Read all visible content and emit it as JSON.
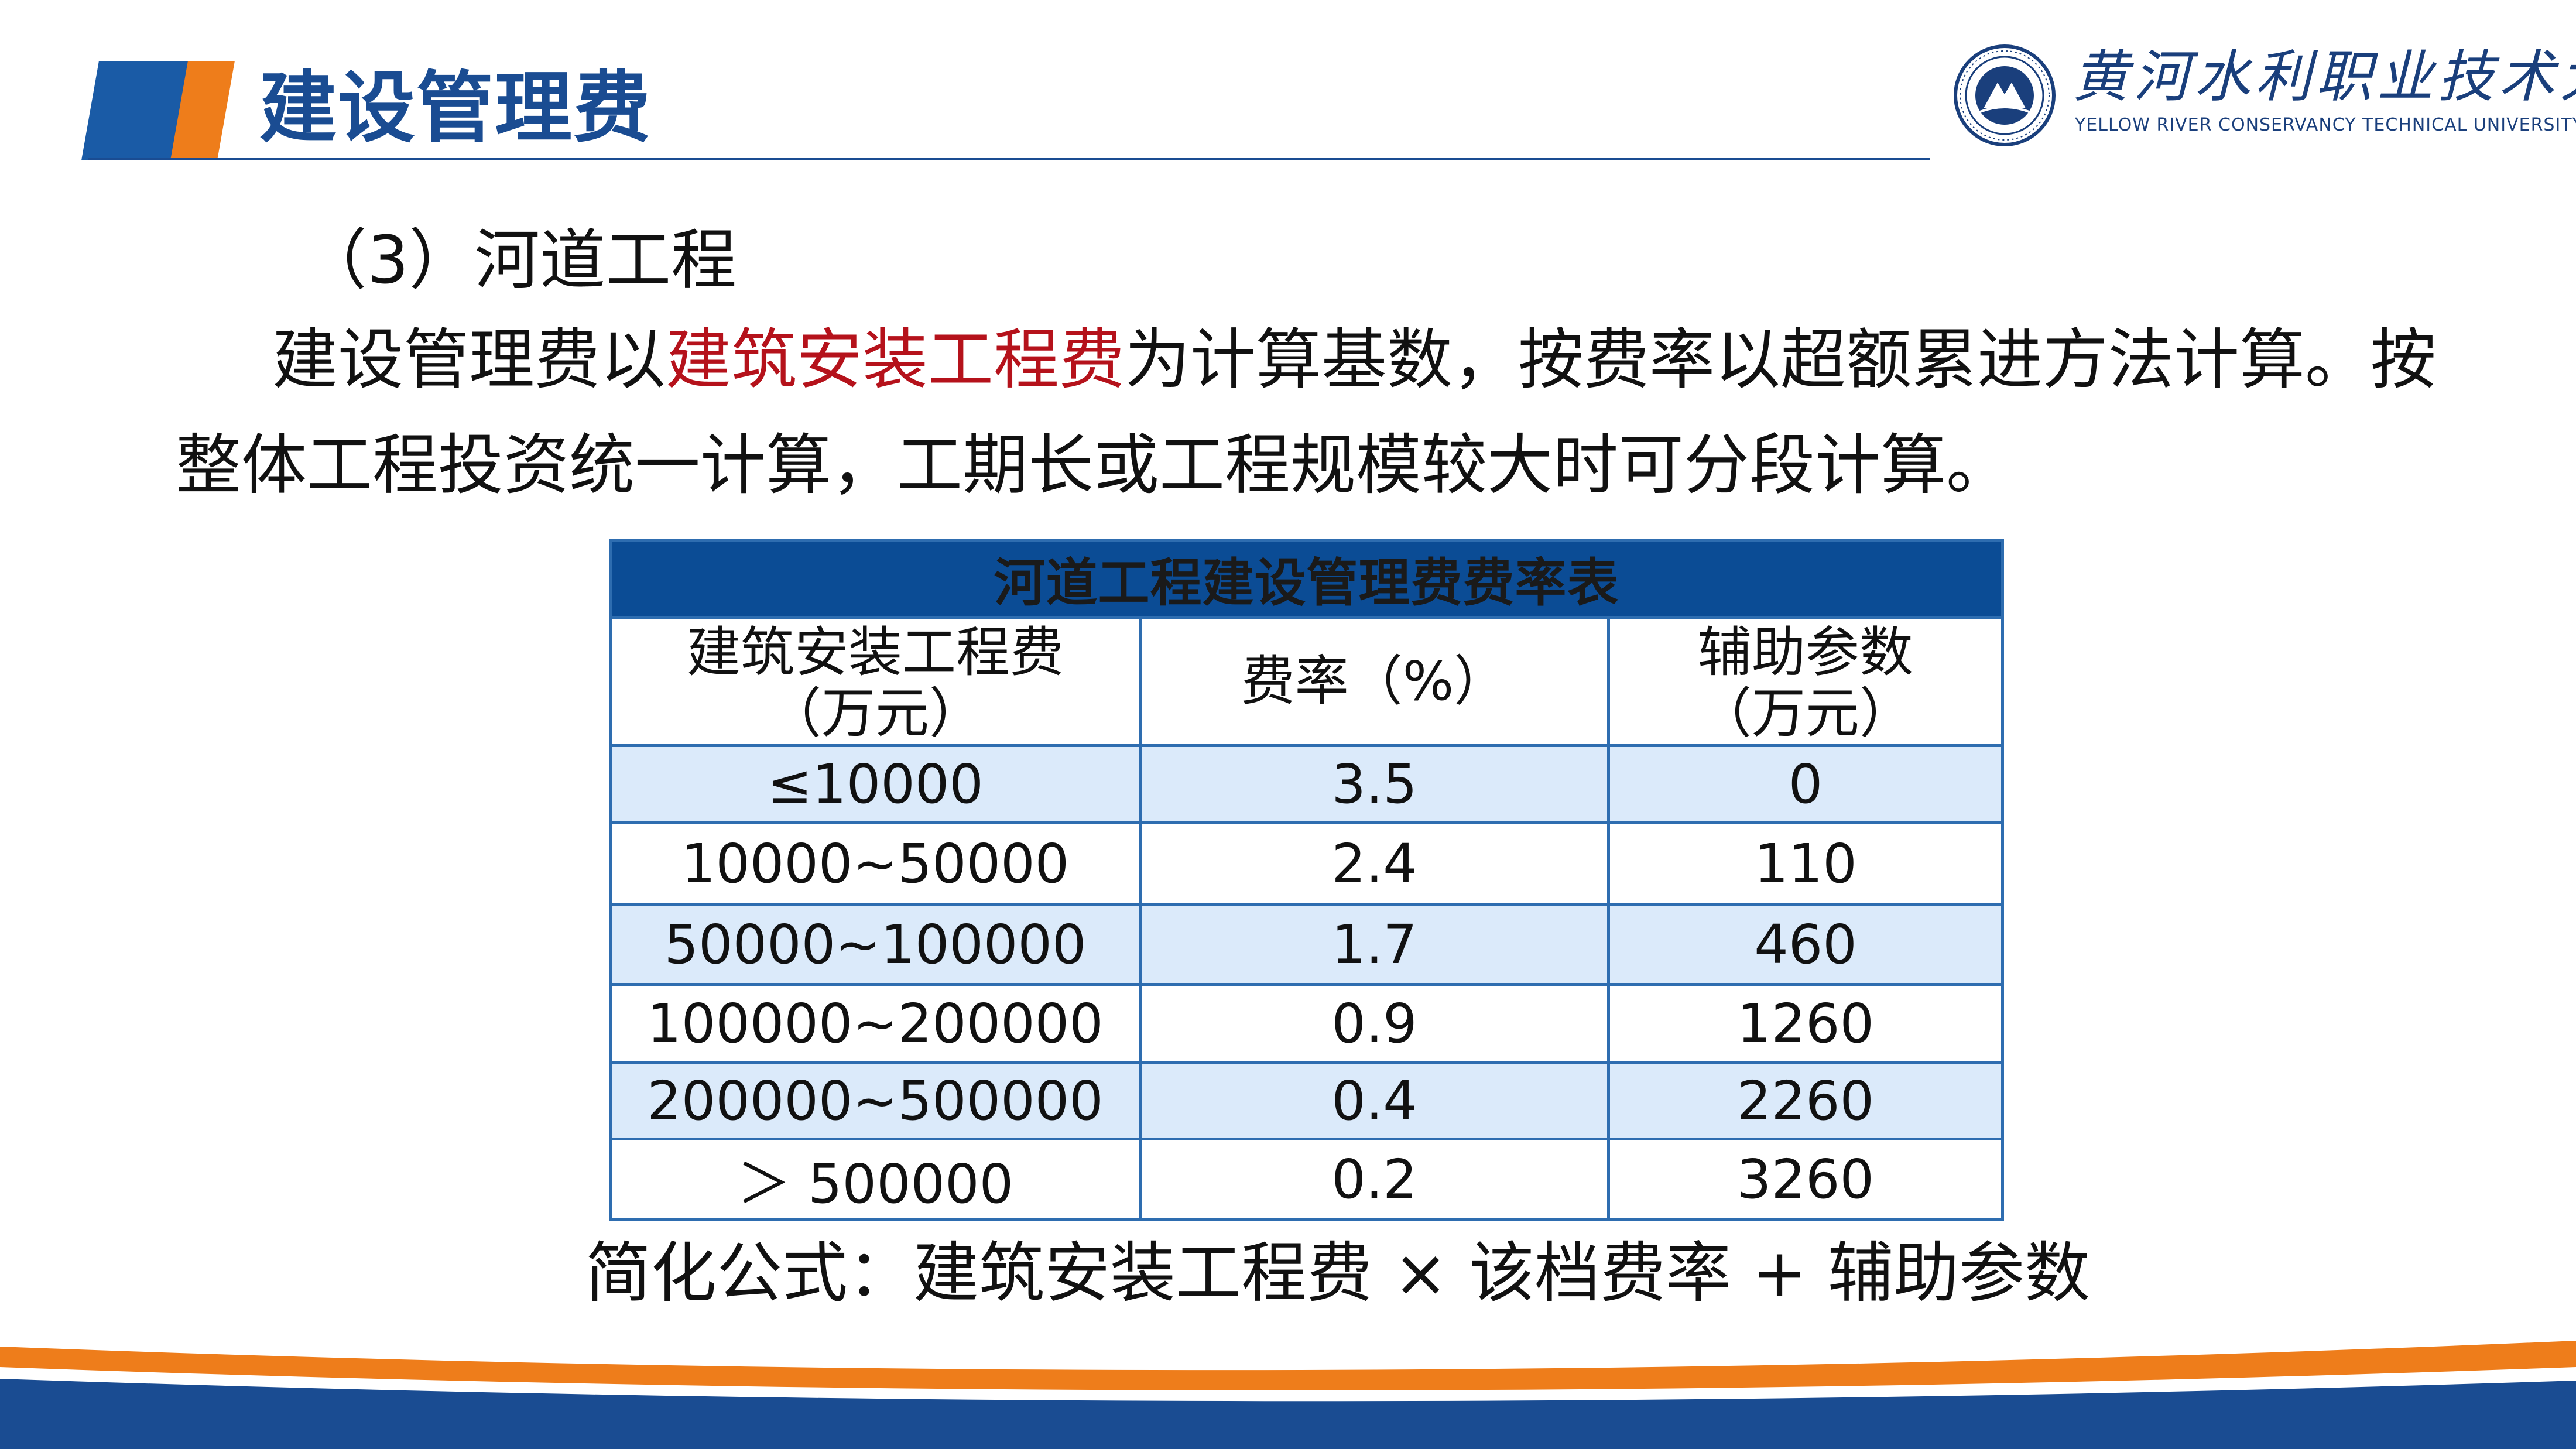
{
  "header": {
    "title": "建设管理费"
  },
  "logo": {
    "name_cn": "黄河水利职业技术大学",
    "name_en": "YELLOW RIVER CONSERVANCY TECHNICAL UNIVERSITY"
  },
  "content": {
    "section_heading": "（3）河道工程",
    "para1_part1": "建设管理费以",
    "para1_highlight": "建筑安装工程费",
    "para1_part2": "为计算基数，按费率以超额累进方法计算。按",
    "para2": "整体工程投资统一计算，工期长或工程规模较大时可分段计算。",
    "formula": "简化公式：建筑安装工程费 × 该档费率 + 辅助参数"
  },
  "table": {
    "title": "河道工程建设管理费费率表",
    "columns": [
      {
        "line1": "建筑安装工程费",
        "line2": "（万元）"
      },
      {
        "line1": "费率（%）",
        "line2": ""
      },
      {
        "line1": "辅助参数",
        "line2": "（万元）"
      }
    ],
    "rows": [
      {
        "range": "≤10000",
        "rate": "3.5",
        "param": "0"
      },
      {
        "range": "10000~50000",
        "rate": "2.4",
        "param": "110"
      },
      {
        "range": "50000~100000",
        "rate": "1.7",
        "param": "460"
      },
      {
        "range": "100000~200000",
        "rate": "0.9",
        "param": "1260"
      },
      {
        "range": "200000~500000",
        "rate": "0.4",
        "param": "2260"
      },
      {
        "range": "＞ 500000",
        "rate": "0.2",
        "param": "3260"
      }
    ]
  },
  "colors": {
    "brand_blue": "#1a4c92",
    "accent_orange": "#ee7d1b",
    "highlight_red": "#b5121b",
    "table_header_blue": "#0b4c95",
    "row_shade": "#dbeafa"
  }
}
